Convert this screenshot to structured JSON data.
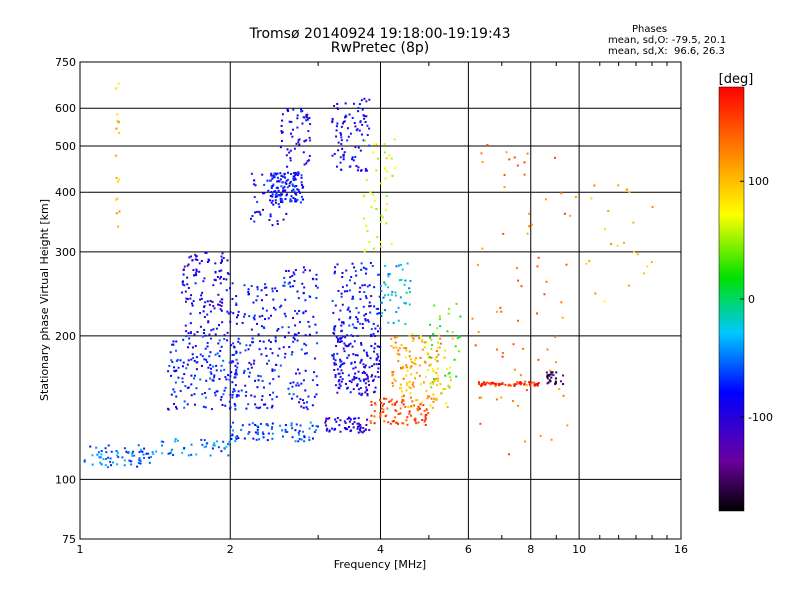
{
  "title": {
    "line1": "Tromsø 20140924 19:18:00-19:19:43",
    "line2": "RwPretec (8p)"
  },
  "stats": {
    "heading": "Phases",
    "o_line": "mean, sd,O: -79.5, 20.1",
    "x_line": "mean, sd,X:  96.6, 26.3"
  },
  "colorbar": {
    "unit_label": "[deg]",
    "ticks": [
      {
        "value": 100,
        "label": "100"
      },
      {
        "value": 0,
        "label": "0"
      },
      {
        "value": -100,
        "label": "-100"
      }
    ],
    "range": [
      -180,
      180
    ]
  },
  "chart_data": {
    "type": "scatter",
    "xlabel": "Frequency [MHz]",
    "ylabel": "Stationary phase Virtual Height [km]",
    "x_scale": "log",
    "y_scale": "log",
    "xlim": [
      1,
      16
    ],
    "ylim": [
      75,
      750
    ],
    "xticks": [
      1,
      2,
      4,
      6,
      8,
      10,
      16
    ],
    "xtick_labels": [
      "1",
      "2",
      "4",
      "6",
      "8",
      "10",
      "16"
    ],
    "yticks": [
      75,
      100,
      200,
      300,
      400,
      500,
      600,
      750
    ],
    "ytick_labels": [
      "75",
      "100",
      "200",
      "300",
      "400",
      "500",
      "600",
      "750"
    ],
    "grid": true,
    "color_by": "phase [deg]",
    "clusters": [
      {
        "freq": [
          1.02,
          1.4
        ],
        "height": [
          106,
          118
        ],
        "phase": -55,
        "n": 70
      },
      {
        "freq": [
          1.4,
          2.0
        ],
        "height": [
          112,
          122
        ],
        "phase": -50,
        "n": 45
      },
      {
        "freq": [
          2.0,
          3.0
        ],
        "height": [
          120,
          132
        ],
        "phase": -60,
        "n": 80
      },
      {
        "freq": [
          1.5,
          2.1
        ],
        "height": [
          140,
          200
        ],
        "phase": -75,
        "n": 160
      },
      {
        "freq": [
          1.6,
          2.0
        ],
        "height": [
          200,
          300
        ],
        "phase": -95,
        "n": 130
      },
      {
        "freq": [
          2.0,
          2.5
        ],
        "height": [
          140,
          260
        ],
        "phase": -80,
        "n": 150
      },
      {
        "freq": [
          2.2,
          2.6
        ],
        "height": [
          340,
          440
        ],
        "phase": -85,
        "n": 50
      },
      {
        "freq": [
          2.4,
          2.8
        ],
        "height": [
          380,
          440
        ],
        "phase": -80,
        "n": 120
      },
      {
        "freq": [
          2.5,
          2.9
        ],
        "height": [
          440,
          600
        ],
        "phase": -90,
        "n": 60
      },
      {
        "freq": [
          2.5,
          3.0
        ],
        "height": [
          140,
          280
        ],
        "phase": -78,
        "n": 120
      },
      {
        "freq": [
          3.1,
          3.8
        ],
        "height": [
          125,
          135
        ],
        "phase": -100,
        "n": 60
      },
      {
        "freq": [
          3.2,
          4.0
        ],
        "height": [
          150,
          200
        ],
        "phase": -92,
        "n": 160
      },
      {
        "freq": [
          3.2,
          4.0
        ],
        "height": [
          200,
          285
        ],
        "phase": -80,
        "n": 110
      },
      {
        "freq": [
          3.2,
          3.8
        ],
        "height": [
          440,
          640
        ],
        "phase": -90,
        "n": 90
      },
      {
        "freq": [
          3.7,
          4.3
        ],
        "height": [
          300,
          520
        ],
        "phase": 70,
        "n": 45
      },
      {
        "freq": [
          3.8,
          5.0
        ],
        "height": [
          130,
          148
        ],
        "phase": 150,
        "n": 90
      },
      {
        "freq": [
          4.2,
          5.3
        ],
        "height": [
          145,
          200
        ],
        "phase": 115,
        "n": 90
      },
      {
        "freq": [
          4.4,
          5.6
        ],
        "height": [
          140,
          205
        ],
        "phase": 85,
        "n": 60
      },
      {
        "freq": [
          4.0,
          4.6
        ],
        "height": [
          210,
          290
        ],
        "phase": -30,
        "n": 45
      },
      {
        "freq": [
          5.0,
          5.8
        ],
        "height": [
          150,
          240
        ],
        "phase": 30,
        "n": 35
      },
      {
        "freq": [
          6.3,
          8.3
        ],
        "height": [
          157,
          160
        ],
        "phase": 165,
        "n": 60
      },
      {
        "freq": [
          8.6,
          9.3
        ],
        "height": [
          158,
          168
        ],
        "phase": -150,
        "n": 25
      },
      {
        "freq": [
          6.1,
          9.5
        ],
        "height": [
          110,
          520
        ],
        "phase": 130,
        "n": 70
      },
      {
        "freq": [
          9.5,
          14.5
        ],
        "height": [
          220,
          420
        ],
        "phase": 100,
        "n": 25
      },
      {
        "freq": [
          1.18,
          1.2
        ],
        "height": [
          330,
          680
        ],
        "phase": 100,
        "n": 18
      }
    ]
  }
}
